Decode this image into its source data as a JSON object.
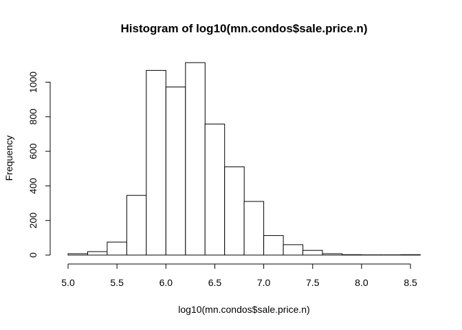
{
  "chart_data": {
    "type": "bar",
    "title": "Histogram of log10(mn.condos$sale.price.n)",
    "xlabel": "log10(mn.condos$sale.price.n)",
    "ylabel": "Frequency",
    "bin_edges": [
      5.0,
      5.2,
      5.4,
      5.6,
      5.8,
      6.0,
      6.2,
      6.4,
      6.6,
      6.8,
      7.0,
      7.2,
      7.4,
      7.6,
      7.8,
      8.0,
      8.2,
      8.4,
      8.6
    ],
    "values": [
      8,
      20,
      75,
      345,
      1068,
      972,
      1113,
      758,
      510,
      310,
      113,
      60,
      27,
      8,
      2,
      1,
      1,
      2
    ],
    "x_ticks": [
      "5.0",
      "5.5",
      "6.0",
      "6.5",
      "7.0",
      "7.5",
      "8.0",
      "8.5"
    ],
    "y_ticks": [
      "0",
      "200",
      "400",
      "600",
      "800",
      "1000"
    ],
    "xlim": [
      5.0,
      8.6
    ],
    "ylim": [
      0,
      1113
    ],
    "grid": false,
    "legend": "none",
    "colors": {
      "bar_fill": "#ffffff",
      "bar_stroke": "#000000"
    }
  }
}
